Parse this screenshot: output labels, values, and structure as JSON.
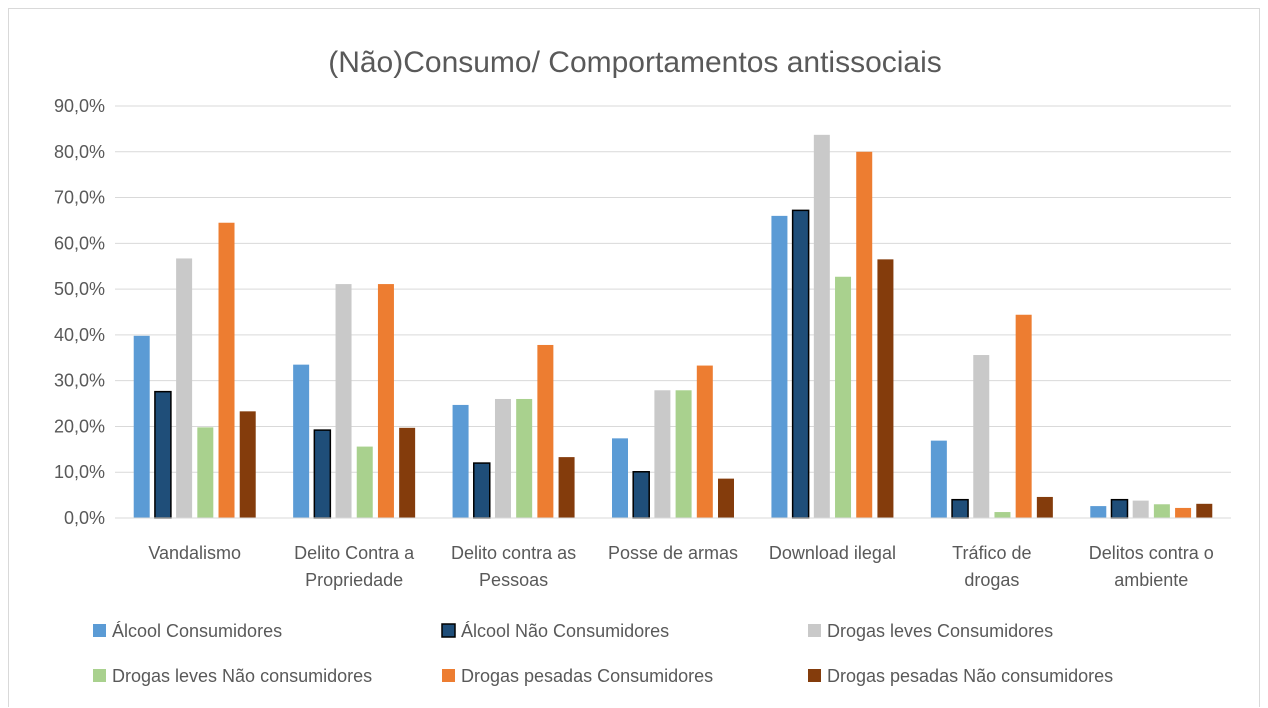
{
  "chart_data": {
    "type": "bar",
    "title": "(Não)Consumo/ Comportamentos antissociais",
    "categories": [
      [
        "Vandalismo"
      ],
      [
        "Delito Contra a",
        "Propriedade"
      ],
      [
        "Delito contra as",
        "Pessoas"
      ],
      [
        "Posse de armas"
      ],
      [
        "Download ilegal"
      ],
      [
        "Tráfico de",
        "drogas"
      ],
      [
        "Delitos contra o",
        "ambiente"
      ]
    ],
    "ylim": [
      0,
      90
    ],
    "yticks": [
      "0,0%",
      "10,0%",
      "20,0%",
      "30,0%",
      "40,0%",
      "50,0%",
      "60,0%",
      "70,0%",
      "80,0%",
      "90,0%"
    ],
    "ytick_values": [
      0,
      10,
      20,
      30,
      40,
      50,
      60,
      70,
      80,
      90
    ],
    "grid": true,
    "legend_position": "bottom",
    "series": [
      {
        "name": "Álcool Consumidores",
        "color": "#5b9bd5",
        "outlined": false,
        "values": [
          39.8,
          33.5,
          24.7,
          17.4,
          66.0,
          16.9,
          2.6
        ]
      },
      {
        "name": "Álcool Não Consumidores",
        "color": "#1f4e79",
        "outlined": true,
        "values": [
          27.6,
          19.2,
          12.0,
          10.1,
          67.2,
          4.0,
          4.0
        ]
      },
      {
        "name": "Drogas leves Consumidores",
        "color": "#c9c9c9",
        "outlined": false,
        "values": [
          56.7,
          51.1,
          26.0,
          27.9,
          83.7,
          35.6,
          3.8
        ]
      },
      {
        "name": "Drogas leves Não consumidores",
        "color": "#a9d18e",
        "outlined": false,
        "values": [
          19.8,
          15.6,
          26.0,
          27.9,
          52.7,
          1.3,
          3.0
        ]
      },
      {
        "name": "Drogas pesadas Consumidores",
        "color": "#ed7d31",
        "outlined": false,
        "values": [
          64.5,
          51.1,
          37.8,
          33.3,
          80.0,
          44.4,
          2.2
        ]
      },
      {
        "name": "Drogas pesadas Não consumidores",
        "color": "#843c0c",
        "outlined": false,
        "values": [
          23.3,
          19.7,
          13.3,
          8.6,
          56.5,
          4.6,
          3.1
        ]
      }
    ]
  }
}
